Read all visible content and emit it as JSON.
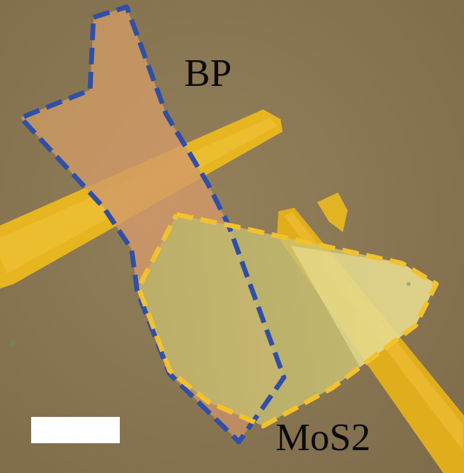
{
  "labels": {
    "bp": "BP",
    "mos2": "MoS2"
  },
  "colors": {
    "substrate": "#8a7552",
    "electrode": "#e3b21f",
    "bp_outline": "#2f4fa8",
    "mos2_outline": "#f2c12e",
    "scale_bar": "#ffffff"
  }
}
